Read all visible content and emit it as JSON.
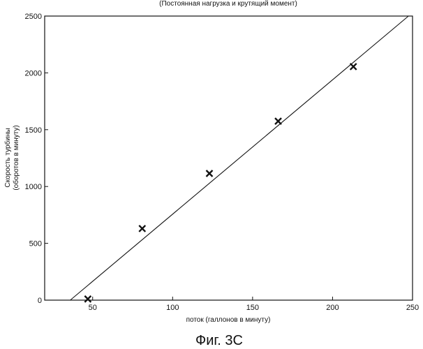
{
  "chart_data": {
    "type": "scatter",
    "title": "(Постоянная нагрузка и крутящий момент)",
    "xlabel": "поток (галлонов в минуту)",
    "ylabel": [
      "Скорость турбины",
      "(оборотов в минуту)"
    ],
    "xlim": [
      20,
      250
    ],
    "ylim": [
      0,
      2500
    ],
    "x_ticks": [
      50,
      100,
      150,
      200,
      250
    ],
    "y_ticks": [
      0,
      500,
      1000,
      1500,
      2000,
      2500
    ],
    "grid": false,
    "legend": "none",
    "series": [
      {
        "marker": "x",
        "points": [
          {
            "x": 47,
            "y": 10
          },
          {
            "x": 81,
            "y": 630
          },
          {
            "x": 123,
            "y": 1115
          },
          {
            "x": 166,
            "y": 1575
          },
          {
            "x": 213,
            "y": 2055
          }
        ]
      }
    ],
    "fit_line": {
      "x": [
        36,
        250
      ],
      "y": [
        0,
        2530
      ]
    }
  },
  "caption": "Фиг. 3С",
  "colors": {
    "ink": "#111111",
    "background": "#ffffff"
  }
}
